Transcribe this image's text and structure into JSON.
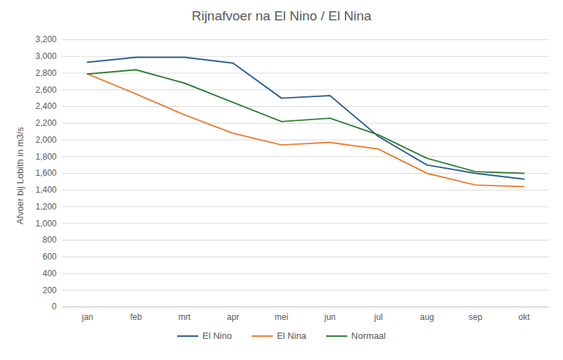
{
  "chart_data": {
    "type": "line",
    "title": "Rijnafvoer na El Nino / El Nina",
    "y_label": "Afvoer bij Lobith in m3/s",
    "categories": [
      "jan",
      "feb",
      "mrt",
      "apr",
      "mei",
      "jun",
      "jul",
      "aug",
      "sep",
      "okt"
    ],
    "series": [
      {
        "name": "El Nino",
        "color": "#2b5d8c",
        "values": [
          2930,
          2990,
          2990,
          2920,
          2500,
          2530,
          2040,
          1700,
          1600,
          1530
        ]
      },
      {
        "name": "El Nina",
        "color": "#ed7d31",
        "values": [
          2790,
          2550,
          2300,
          2080,
          1940,
          1970,
          1890,
          1600,
          1460,
          1440
        ]
      },
      {
        "name": "Normaal",
        "color": "#2e7d32",
        "values": [
          2790,
          2840,
          2680,
          2450,
          2220,
          2260,
          2060,
          1780,
          1620,
          1600
        ]
      }
    ],
    "ylim": [
      0,
      3200
    ],
    "yticks": [
      0,
      200,
      400,
      600,
      800,
      1000,
      1200,
      1400,
      1600,
      1800,
      2000,
      2200,
      2400,
      2600,
      2800,
      3000,
      3200
    ],
    "grid": true,
    "legend": "bottom"
  }
}
